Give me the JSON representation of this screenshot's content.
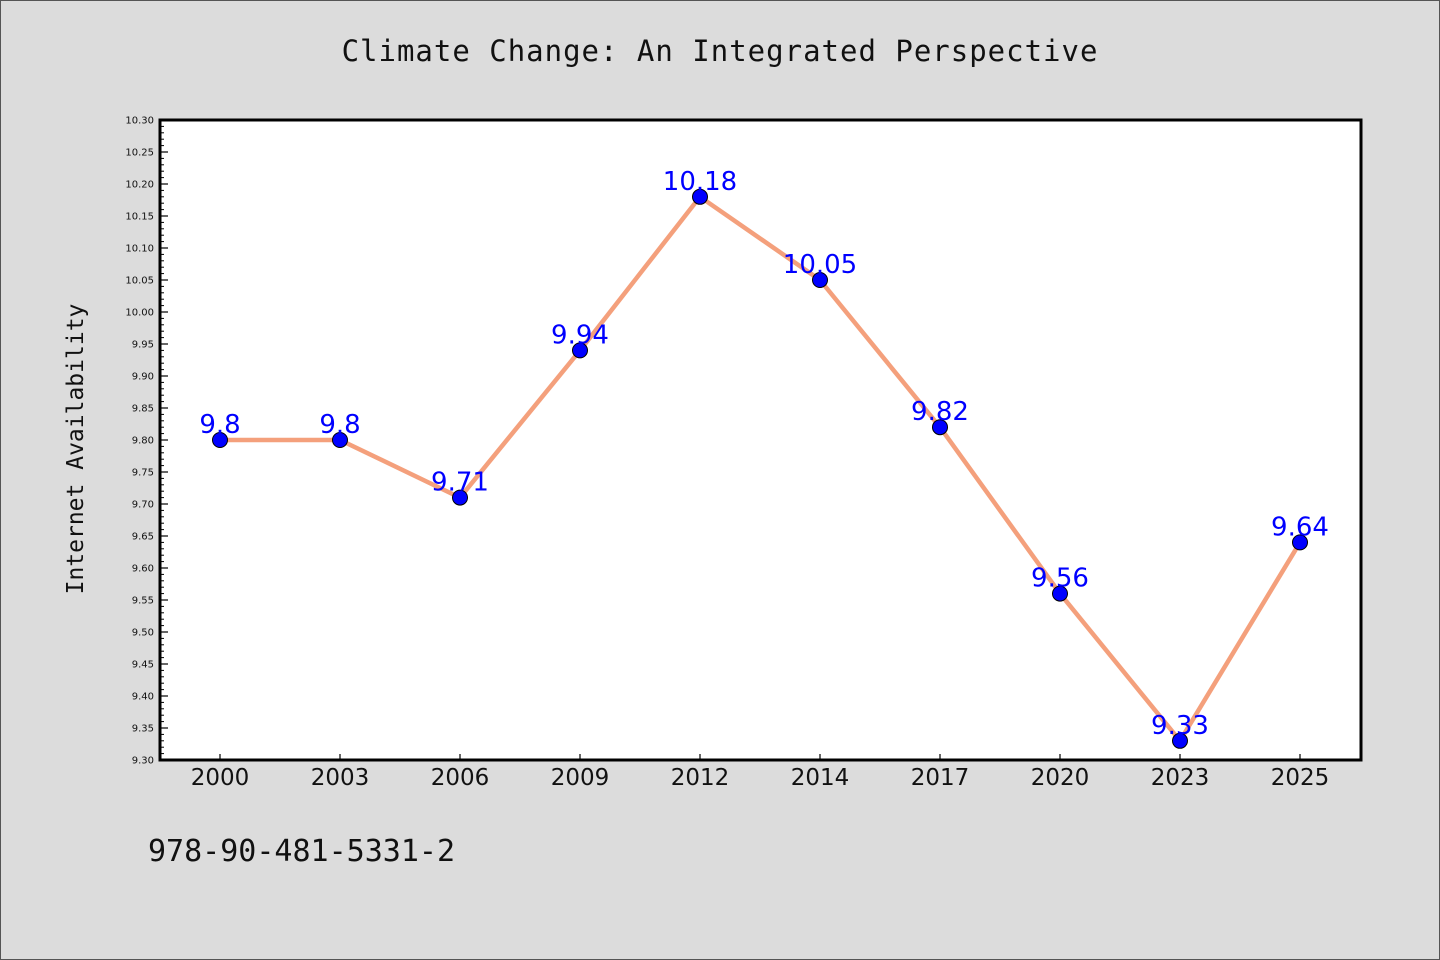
{
  "chart_data": {
    "type": "line",
    "title": "Climate Change: An Integrated Perspective",
    "xlabel": "",
    "ylabel": "Internet Availability",
    "categories": [
      "2000",
      "2003",
      "2006",
      "2009",
      "2012",
      "2014",
      "2017",
      "2020",
      "2023",
      "2025"
    ],
    "series": [
      {
        "values": [
          9.8,
          9.8,
          9.71,
          9.94,
          10.18,
          10.05,
          9.82,
          9.56,
          9.33,
          9.64
        ],
        "labels": [
          "9.8",
          "9.8",
          "9.71",
          "9.94",
          "10.18",
          "10.05",
          "9.82",
          "9.56",
          "9.33",
          "9.64"
        ],
        "line_color": "#f4a07c",
        "marker_color": "#0000ff"
      }
    ],
    "ylim": [
      9.3,
      10.3
    ],
    "yticks": [
      "9.30",
      "9.35",
      "9.40",
      "9.45",
      "9.50",
      "9.55",
      "9.60",
      "9.65",
      "9.70",
      "9.75",
      "9.80",
      "9.85",
      "9.90",
      "9.95",
      "10.00",
      "10.05",
      "10.10",
      "10.15",
      "10.20",
      "10.25",
      "10.30"
    ],
    "grid": false,
    "legend": "none"
  },
  "footer": {
    "isbn": "978-90-481-5331-2"
  },
  "colors": {
    "background": "#dcdcdc",
    "plot_background": "#ffffff",
    "label": "#0000ff"
  }
}
